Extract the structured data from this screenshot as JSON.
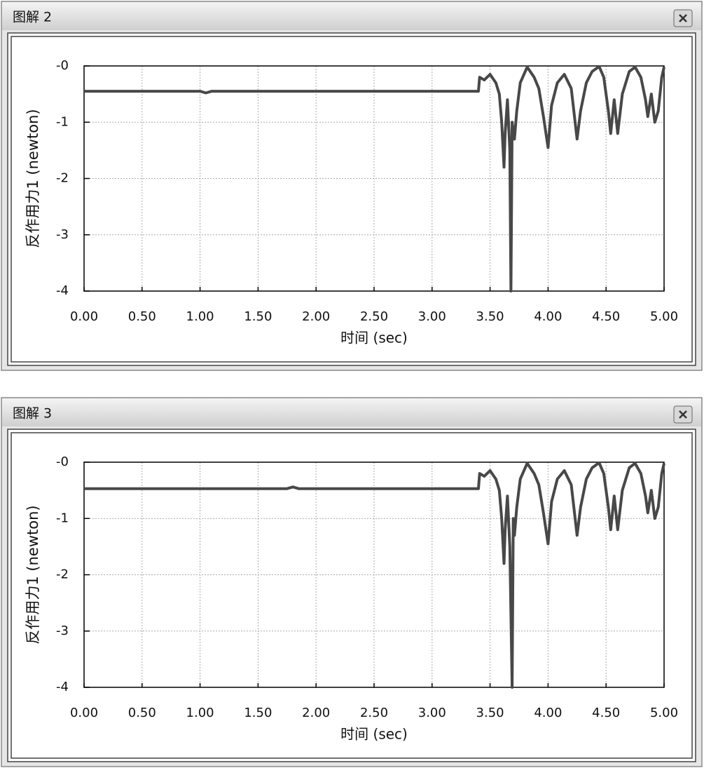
{
  "chart_data": [
    {
      "type": "line",
      "title": "图解 2",
      "xlabel": "时间 (sec)",
      "ylabel": "反作用力1 (newton)",
      "xlim": [
        0,
        5
      ],
      "ylim": [
        -4,
        0
      ],
      "xticks": [
        {
          "value": 0,
          "label": "0.00"
        },
        {
          "value": 0.5,
          "label": "0.50"
        },
        {
          "value": 1,
          "label": "1.00"
        },
        {
          "value": 1.5,
          "label": "1.50"
        },
        {
          "value": 2,
          "label": "2.00"
        },
        {
          "value": 2.5,
          "label": "2.50"
        },
        {
          "value": 3,
          "label": "3.00"
        },
        {
          "value": 3.5,
          "label": "3.50"
        },
        {
          "value": 4,
          "label": "4.00"
        },
        {
          "value": 4.5,
          "label": "4.50"
        },
        {
          "value": 5,
          "label": "5.00"
        }
      ],
      "yticks": [
        {
          "value": 0,
          "label": "-0"
        },
        -1,
        -2,
        -3,
        -4
      ],
      "grid": true,
      "x": [
        0,
        1.0,
        1.05,
        1.1,
        3.4,
        3.41,
        3.45,
        3.5,
        3.55,
        3.58,
        3.6,
        3.62,
        3.63,
        3.65,
        3.67,
        3.68,
        3.69,
        3.71,
        3.73,
        3.76,
        3.82,
        3.88,
        3.92,
        3.96,
        4.0,
        4.03,
        4.08,
        4.14,
        4.2,
        4.25,
        4.28,
        4.33,
        4.38,
        4.44,
        4.48,
        4.52,
        4.54,
        4.57,
        4.6,
        4.64,
        4.7,
        4.75,
        4.8,
        4.84,
        4.86,
        4.89,
        4.92,
        4.95,
        4.98,
        5.0
      ],
      "series": [
        {
          "color": "#484848",
          "values": [
            -0.45,
            -0.45,
            -0.48,
            -0.45,
            -0.45,
            -0.2,
            -0.25,
            -0.15,
            -0.3,
            -0.5,
            -1.0,
            -1.8,
            -1.2,
            -0.6,
            -1.5,
            -4.0,
            -1.0,
            -1.3,
            -0.8,
            -0.3,
            -0.02,
            -0.2,
            -0.4,
            -0.9,
            -1.45,
            -0.7,
            -0.3,
            -0.15,
            -0.4,
            -1.3,
            -0.8,
            -0.3,
            -0.1,
            -0.01,
            -0.2,
            -0.8,
            -1.2,
            -0.6,
            -1.2,
            -0.5,
            -0.1,
            -0.02,
            -0.2,
            -0.6,
            -0.9,
            -0.5,
            -1.0,
            -0.8,
            -0.2,
            -0.02
          ]
        }
      ]
    },
    {
      "type": "line",
      "title": "图解 3",
      "xlabel": "时间 (sec)",
      "ylabel": "反作用力1 (newton)",
      "xlim": [
        0,
        5
      ],
      "ylim": [
        -4,
        0
      ],
      "xticks": [
        {
          "value": 0,
          "label": "0.00"
        },
        {
          "value": 0.5,
          "label": "0.50"
        },
        {
          "value": 1,
          "label": "1.00"
        },
        {
          "value": 1.5,
          "label": "1.50"
        },
        {
          "value": 2,
          "label": "2.00"
        },
        {
          "value": 2.5,
          "label": "2.50"
        },
        {
          "value": 3,
          "label": "3.00"
        },
        {
          "value": 3.5,
          "label": "3.50"
        },
        {
          "value": 4,
          "label": "4.00"
        },
        {
          "value": 4.5,
          "label": "4.50"
        },
        {
          "value": 5,
          "label": "5.00"
        }
      ],
      "yticks": [
        {
          "value": 0,
          "label": "-0"
        },
        -1,
        -2,
        -3,
        -4
      ],
      "grid": true,
      "x": [
        0,
        1.75,
        1.8,
        1.85,
        3.4,
        3.41,
        3.45,
        3.5,
        3.55,
        3.58,
        3.6,
        3.62,
        3.63,
        3.65,
        3.67,
        3.69,
        3.7,
        3.71,
        3.73,
        3.76,
        3.82,
        3.88,
        3.92,
        3.96,
        4.0,
        4.03,
        4.08,
        4.14,
        4.2,
        4.25,
        4.28,
        4.33,
        4.38,
        4.44,
        4.48,
        4.52,
        4.54,
        4.57,
        4.6,
        4.64,
        4.7,
        4.75,
        4.8,
        4.84,
        4.86,
        4.89,
        4.92,
        4.95,
        4.98,
        5.0
      ],
      "series": [
        {
          "color": "#484848",
          "values": [
            -0.47,
            -0.47,
            -0.44,
            -0.47,
            -0.47,
            -0.2,
            -0.25,
            -0.15,
            -0.3,
            -0.5,
            -1.0,
            -1.8,
            -1.2,
            -0.6,
            -1.5,
            -4.0,
            -1.0,
            -1.3,
            -0.8,
            -0.3,
            -0.02,
            -0.2,
            -0.4,
            -0.9,
            -1.45,
            -0.7,
            -0.3,
            -0.15,
            -0.4,
            -1.3,
            -0.8,
            -0.3,
            -0.1,
            -0.01,
            -0.2,
            -0.8,
            -1.2,
            -0.6,
            -1.2,
            -0.5,
            -0.1,
            -0.02,
            -0.2,
            -0.6,
            -0.9,
            -0.5,
            -1.0,
            -0.8,
            -0.2,
            -0.02
          ]
        }
      ]
    }
  ]
}
